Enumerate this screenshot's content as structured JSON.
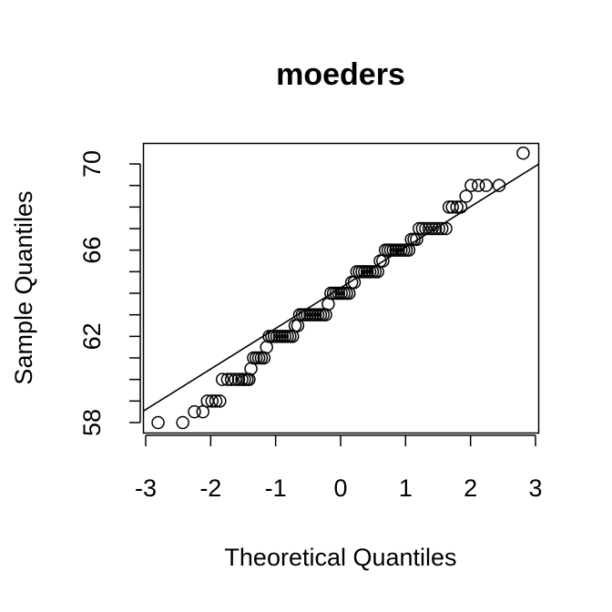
{
  "chart_data": {
    "type": "scatter",
    "title": "moeders",
    "xlabel": "Theoretical Quantiles",
    "ylabel": "Sample Quantiles",
    "xlim": [
      -3,
      3
    ],
    "ylim": [
      57.5,
      71
    ],
    "x_ticks": [
      -3,
      -2,
      -1,
      0,
      1,
      2,
      3
    ],
    "x_tick_labels": [
      "-3",
      "-2",
      "-1",
      "0",
      "1",
      "2",
      "3"
    ],
    "y_ticks": [
      58,
      59,
      60,
      61,
      62,
      63,
      64,
      65,
      66,
      67,
      68,
      69,
      70
    ],
    "y_tick_labels": [
      "58",
      "",
      "",
      "",
      "62",
      "",
      "",
      "",
      "66",
      "",
      "",
      "",
      "70"
    ],
    "reference_line": {
      "x": [
        -3,
        3
      ],
      "y": [
        58.6,
        69.9
      ]
    },
    "grid": false,
    "marker": "open-circle",
    "groups": [
      {
        "y": 58,
        "x": [
          -2.81,
          -2.43
        ]
      },
      {
        "y": 58.5,
        "x": [
          -2.25,
          -2.12
        ]
      },
      {
        "y": 59,
        "x": [
          -2.05,
          -1.98,
          -1.92,
          -1.86
        ]
      },
      {
        "y": 60,
        "x": [
          -1.82,
          -1.74,
          -1.68,
          -1.62,
          -1.57,
          -1.52,
          -1.48,
          -1.44,
          -1.41
        ]
      },
      {
        "y": 60.5,
        "x": [
          -1.38
        ]
      },
      {
        "y": 61,
        "x": [
          -1.34,
          -1.3,
          -1.26,
          -1.22,
          -1.18
        ]
      },
      {
        "y": 61.5,
        "x": [
          -1.14
        ]
      },
      {
        "y": 62,
        "x": [
          -1.1,
          -1.06,
          -1.02,
          -0.98,
          -0.94,
          -0.9,
          -0.86,
          -0.82,
          -0.78,
          -0.74
        ]
      },
      {
        "y": 62.5,
        "x": [
          -0.7,
          -0.66
        ]
      },
      {
        "y": 63,
        "x": [
          -0.63,
          -0.59,
          -0.55,
          -0.51,
          -0.47,
          -0.43,
          -0.39,
          -0.35,
          -0.31,
          -0.27,
          -0.23
        ]
      },
      {
        "y": 63.5,
        "x": [
          -0.19
        ]
      },
      {
        "y": 64,
        "x": [
          -0.15,
          -0.11,
          -0.07,
          -0.03,
          0.01,
          0.05,
          0.09,
          0.13
        ]
      },
      {
        "y": 64.5,
        "x": [
          0.17,
          0.21
        ]
      },
      {
        "y": 65,
        "x": [
          0.25,
          0.29,
          0.33,
          0.37,
          0.41,
          0.45,
          0.49,
          0.53,
          0.57
        ]
      },
      {
        "y": 65.5,
        "x": [
          0.61,
          0.65
        ]
      },
      {
        "y": 66,
        "x": [
          0.69,
          0.73,
          0.77,
          0.81,
          0.85,
          0.89,
          0.93,
          0.97,
          1.01,
          1.05
        ]
      },
      {
        "y": 66.5,
        "x": [
          1.09,
          1.13,
          1.17
        ]
      },
      {
        "y": 67,
        "x": [
          1.21,
          1.26,
          1.31,
          1.36,
          1.41,
          1.46,
          1.51,
          1.56,
          1.62
        ]
      },
      {
        "y": 68,
        "x": [
          1.67,
          1.72,
          1.79,
          1.85
        ]
      },
      {
        "y": 68.5,
        "x": [
          1.93
        ]
      },
      {
        "y": 69,
        "x": [
          2.01,
          2.12,
          2.24,
          2.44
        ]
      },
      {
        "y": 70.5,
        "x": [
          2.81
        ]
      }
    ]
  }
}
